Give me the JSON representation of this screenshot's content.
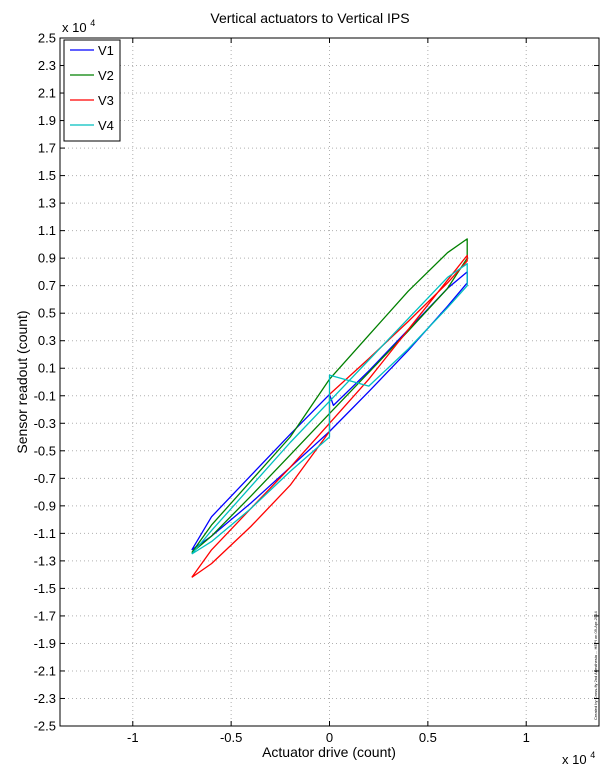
{
  "chart_data": {
    "type": "line",
    "title": "Vertical actuators to Vertical IPS",
    "xlabel": "Actuator drive (count)",
    "ylabel": "Sensor readout (count)",
    "x_multiplier": "x 10",
    "x_multiplier_exp": "4",
    "y_multiplier": "x 10",
    "y_multiplier_exp": "4",
    "xlim": [
      -1.37,
      1.37
    ],
    "ylim": [
      -2.5,
      2.5
    ],
    "x_ticks": [
      -1,
      -0.5,
      0,
      0.5,
      1
    ],
    "x_tick_labels": [
      "-1",
      "-0.5",
      "0",
      "0.5",
      "1"
    ],
    "y_ticks": [
      2.5,
      2.3,
      2.1,
      1.9,
      1.7,
      1.5,
      1.3,
      1.1,
      0.9,
      0.7,
      0.5,
      0.3,
      0.1,
      -0.1,
      -0.3,
      -0.5,
      -0.7,
      -0.9,
      -1.1,
      -1.3,
      -1.5,
      -1.7,
      -1.9,
      -2.1,
      -2.3,
      -2.5
    ],
    "y_tick_labels": [
      "2.5",
      "2.3",
      "2.1",
      "1.9",
      "1.7",
      "1.5",
      "1.3",
      "1.1",
      "0.9",
      "0.7",
      "0.5",
      "0.3",
      "0.1",
      "-0.1",
      "-0.3",
      "-0.5",
      "-0.7",
      "-0.9",
      "-1.1",
      "-1.3",
      "-1.5",
      "-1.7",
      "-1.9",
      "-2.1",
      "-2.3",
      "-2.5"
    ],
    "grid": true,
    "legend_position": "top-left",
    "side_note": "Created by Cross-fly 2nd Anesthesia ... HEPI on 09-Apr-2014",
    "series": [
      {
        "name": "V1",
        "color": "#0000ff",
        "x": [
          -0.7,
          -0.6,
          -0.4,
          -0.2,
          0.0,
          0.2,
          0.4,
          0.6,
          0.7,
          0.7,
          0.6,
          0.4,
          0.2,
          0.02,
          0.0,
          -0.2,
          -0.4,
          -0.6,
          -0.7
        ],
        "y": [
          -1.22,
          -1.12,
          -0.88,
          -0.62,
          -0.36,
          -0.07,
          0.23,
          0.55,
          0.72,
          0.8,
          0.68,
          0.38,
          0.08,
          -0.17,
          -0.09,
          -0.38,
          -0.68,
          -0.98,
          -1.22
        ]
      },
      {
        "name": "V2",
        "color": "#008000",
        "x": [
          -0.7,
          -0.6,
          -0.4,
          -0.2,
          0.0,
          0.2,
          0.4,
          0.6,
          0.7,
          0.7,
          0.6,
          0.4,
          0.2,
          0.0,
          -0.2,
          -0.4,
          -0.6,
          -0.7
        ],
        "y": [
          -1.24,
          -1.12,
          -0.83,
          -0.53,
          -0.23,
          0.07,
          0.37,
          0.68,
          0.9,
          1.04,
          0.94,
          0.66,
          0.34,
          0.02,
          -0.4,
          -0.72,
          -1.04,
          -1.24
        ]
      },
      {
        "name": "V3",
        "color": "#ff0000",
        "x": [
          -0.7,
          -0.6,
          -0.4,
          -0.2,
          0.0,
          0.0,
          0.2,
          0.4,
          0.6,
          0.7,
          0.7,
          0.6,
          0.4,
          0.2,
          0.0,
          -0.2,
          -0.4,
          -0.6,
          -0.7
        ],
        "y": [
          -1.42,
          -1.32,
          -1.05,
          -0.75,
          -0.36,
          -0.09,
          0.17,
          0.44,
          0.72,
          0.88,
          0.92,
          0.74,
          0.38,
          0.02,
          -0.3,
          -0.62,
          -0.92,
          -1.22,
          -1.42
        ]
      },
      {
        "name": "V4",
        "color": "#00bfbf",
        "x": [
          -0.7,
          -0.6,
          -0.4,
          -0.2,
          0.0,
          0.0,
          0.0,
          0.2,
          0.4,
          0.6,
          0.7,
          0.7,
          0.6,
          0.4,
          0.2,
          0.0,
          -0.2,
          -0.4,
          -0.6,
          -0.7
        ],
        "y": [
          -1.25,
          -1.16,
          -0.92,
          -0.65,
          -0.4,
          -0.18,
          0.05,
          -0.03,
          0.24,
          0.54,
          0.7,
          0.86,
          0.76,
          0.46,
          0.16,
          -0.14,
          -0.44,
          -0.76,
          -1.08,
          -1.25
        ]
      }
    ]
  }
}
